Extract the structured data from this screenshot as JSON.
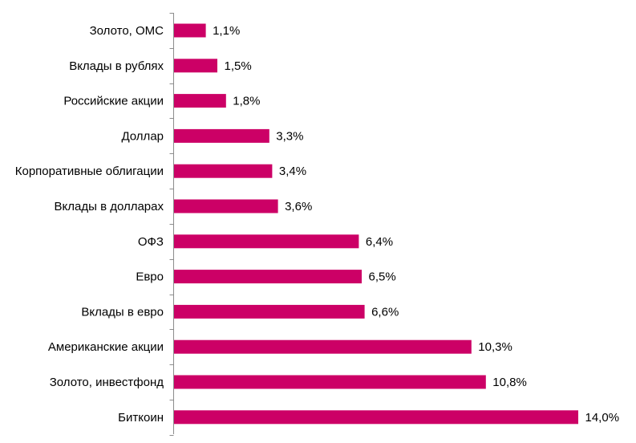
{
  "chart_data": {
    "type": "bar",
    "orientation": "horizontal",
    "title": "",
    "xlabel": "",
    "ylabel": "",
    "xlim": [
      0,
      14
    ],
    "grid": false,
    "legend": "none",
    "bar_color": "#cc0066",
    "categories": [
      "Золото, ОМС",
      "Вклады в рублях",
      "Российские акции",
      "Доллар",
      "Корпоративные облигации",
      "Вклады в долларах",
      "ОФЗ",
      "Евро",
      "Вклады в евро",
      "Американские акции",
      "Золото, инвестфонд",
      "Биткоин"
    ],
    "values": [
      1.1,
      1.5,
      1.8,
      3.3,
      3.4,
      3.6,
      6.4,
      6.5,
      6.6,
      10.3,
      10.8,
      14.0
    ],
    "value_labels": [
      "1,1%",
      "1,5%",
      "1,8%",
      "3,3%",
      "3,4%",
      "3,6%",
      "6,4%",
      "6,5%",
      "6,6%",
      "10,3%",
      "10,8%",
      "14,0%"
    ]
  }
}
